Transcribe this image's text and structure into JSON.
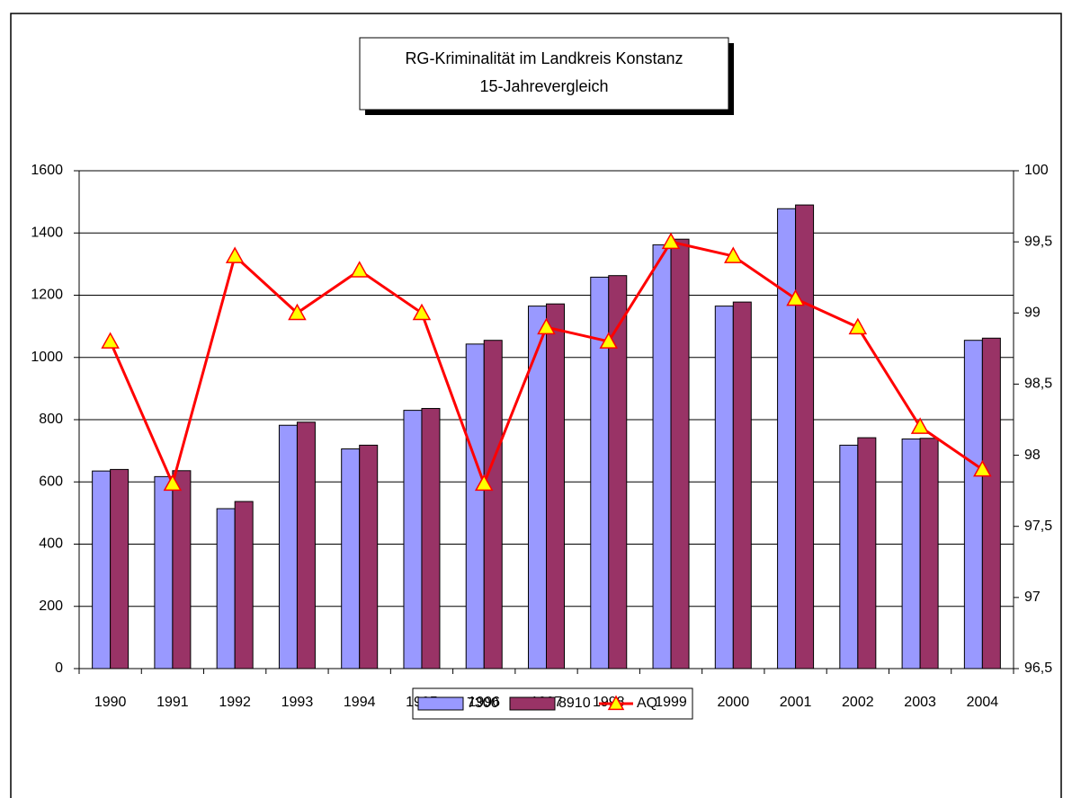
{
  "chart_data": {
    "type": "bar",
    "title": "RG-Kriminalität im Landkreis Konstanz",
    "subtitle": "15-Jahrevergleich",
    "categories": [
      "1990",
      "1991",
      "1992",
      "1993",
      "1994",
      "1995",
      "1996",
      "1997",
      "1998",
      "1999",
      "2000",
      "2001",
      "2002",
      "2003",
      "2004"
    ],
    "series": [
      {
        "name": "7300",
        "color": "#9999ff",
        "values": [
          635,
          617,
          514,
          782,
          706,
          830,
          1043,
          1165,
          1258,
          1362,
          1165,
          1478,
          718,
          738,
          1055
        ]
      },
      {
        "name": "8910",
        "color": "#993366",
        "values": [
          640,
          636,
          537,
          792,
          718,
          836,
          1055,
          1172,
          1263,
          1380,
          1178,
          1490,
          742,
          740,
          1062
        ]
      },
      {
        "name": "AQ",
        "type": "line",
        "axis": "y2",
        "color": "#ff0000",
        "marker_color": "#ffff00",
        "values": [
          98.8,
          97.8,
          99.4,
          99.0,
          99.3,
          99.0,
          97.8,
          98.9,
          98.8,
          99.5,
          99.4,
          99.1,
          98.9,
          98.2,
          97.9
        ]
      }
    ],
    "ylim": [
      0,
      1600
    ],
    "yticks": [
      0,
      200,
      400,
      600,
      800,
      1000,
      1200,
      1400,
      1600
    ],
    "y2lim": [
      96.5,
      100
    ],
    "y2ticks": [
      {
        "value": 96.5,
        "label": "96,5"
      },
      97,
      {
        "value": 97.5,
        "label": "97,5"
      },
      98,
      {
        "value": 98.5,
        "label": "98,5"
      },
      99,
      {
        "value": 99.5,
        "label": "99,5"
      },
      100
    ],
    "grid": true,
    "legend": "bottom"
  }
}
